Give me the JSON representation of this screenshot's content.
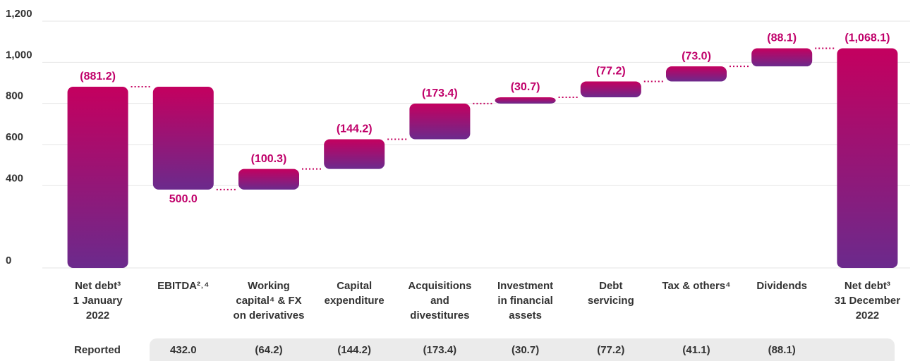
{
  "chart_data": {
    "type": "waterfall",
    "categories": [
      "Net debt³\n1 January\n2022",
      "EBITDA²˒⁴",
      "Working\ncapital⁴ & FX\non derivatives",
      "Capital\nexpenditure",
      "Acquisitions\nand\ndivestitures",
      "Investment\nin financial\nassets",
      "Debt\nservicing",
      "Tax & others⁴",
      "Dividends",
      "Net debt³\n31 December\n2022"
    ],
    "measure": [
      "absolute",
      "relative",
      "relative",
      "relative",
      "relative",
      "relative",
      "relative",
      "relative",
      "relative",
      "absolute"
    ],
    "values": [
      881.2,
      -500.0,
      100.3,
      144.2,
      173.4,
      30.7,
      77.2,
      73.0,
      88.1,
      1068.1
    ],
    "value_labels": [
      "(881.2)",
      "500.0",
      "(100.3)",
      "(144.2)",
      "(173.4)",
      "(30.7)",
      "(77.2)",
      "(73.0)",
      "(88.1)",
      "(1,068.1)"
    ],
    "ylim": [
      0,
      1200
    ],
    "yticks": [
      0,
      400,
      600,
      800,
      {
        "value": 1000,
        "label": "1,000"
      },
      {
        "value": 1200,
        "label": "1,200"
      }
    ],
    "grid": true,
    "color": [
      "#c4005f",
      "#6b2a8c"
    ],
    "reported": {
      "label": "Reported",
      "values": [
        "432.0",
        "(64.2)",
        "(144.2)",
        "(173.4)",
        "(30.7)",
        "(77.2)",
        "(41.1)",
        "(88.1)"
      ]
    }
  }
}
